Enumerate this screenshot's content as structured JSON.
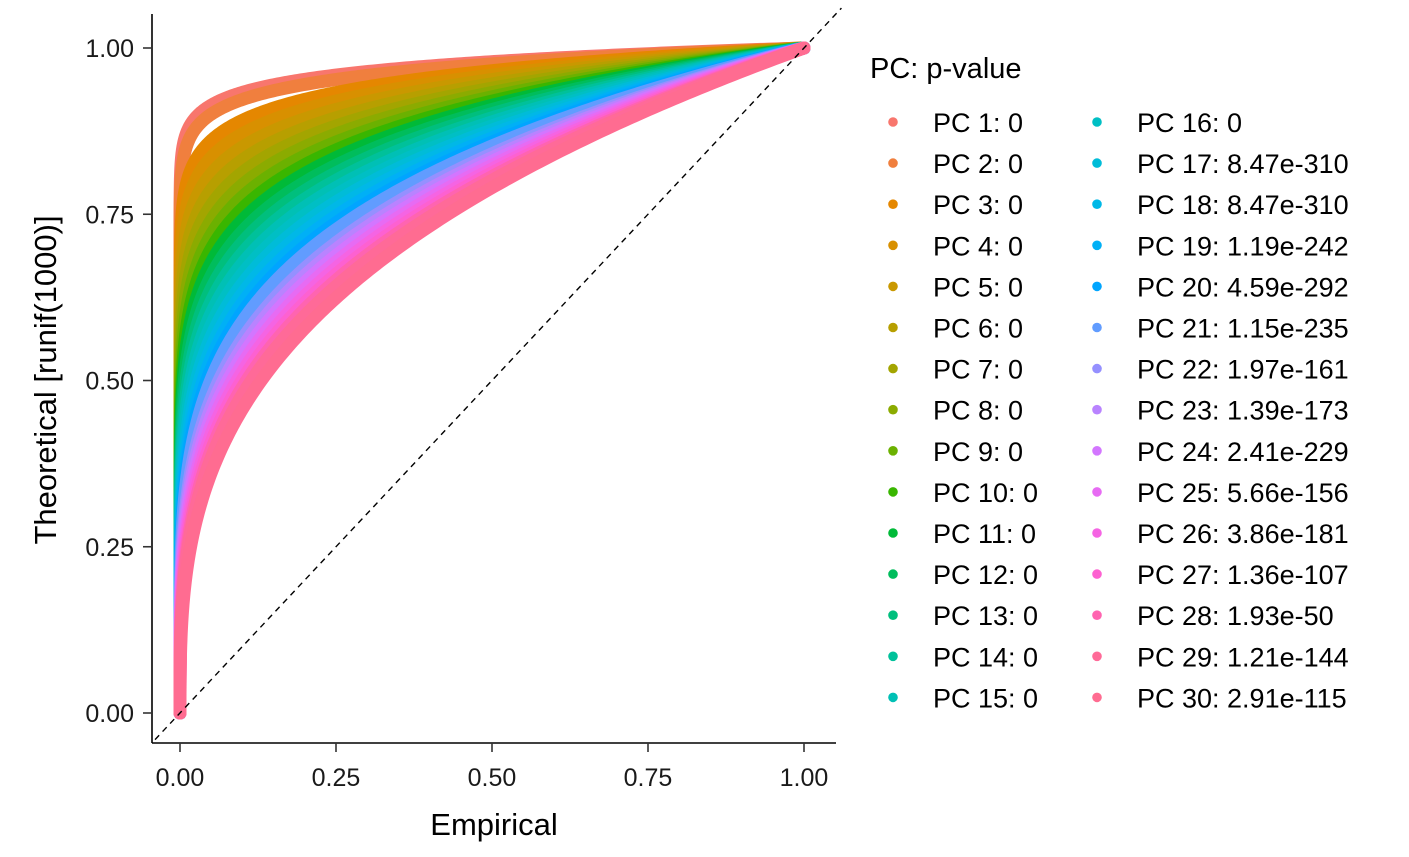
{
  "chart_data": {
    "type": "line",
    "xlabel": "Empirical",
    "ylabel": "Theoretical [runif(1000)]",
    "xlim": [
      -0.05,
      1.05
    ],
    "ylim": [
      -0.05,
      1.05
    ],
    "x_ticks": [
      "0.00",
      "0.25",
      "0.50",
      "0.75",
      "1.00"
    ],
    "y_ticks": [
      "0.00",
      "0.25",
      "0.50",
      "0.75",
      "1.00"
    ],
    "reference_line": "y = x (dashed)",
    "grid": false,
    "legend": {
      "title": "PC: p-value",
      "placement": "right",
      "columns": 2
    },
    "series": [
      {
        "name": "PC 1: 0",
        "color": "#F8766D",
        "curve_exponent": 0.03
      },
      {
        "name": "PC 2: 0",
        "color": "#F07F3E",
        "curve_exponent": 0.035
      },
      {
        "name": "PC 3: 0",
        "color": "#E58700",
        "curve_exponent": 0.05
      },
      {
        "name": "PC 4: 0",
        "color": "#D89000",
        "curve_exponent": 0.06
      },
      {
        "name": "PC 5: 0",
        "color": "#C99800",
        "curve_exponent": 0.07
      },
      {
        "name": "PC 6: 0",
        "color": "#B79F00",
        "curve_exponent": 0.08
      },
      {
        "name": "PC 7: 0",
        "color": "#A3A500",
        "curve_exponent": 0.09
      },
      {
        "name": "PC 8: 0",
        "color": "#8BAB00",
        "curve_exponent": 0.1
      },
      {
        "name": "PC 9: 0",
        "color": "#6BB100",
        "curve_exponent": 0.11
      },
      {
        "name": "PC 10: 0",
        "color": "#39B600",
        "curve_exponent": 0.12
      },
      {
        "name": "PC 11: 0",
        "color": "#00BA38",
        "curve_exponent": 0.13
      },
      {
        "name": "PC 12: 0",
        "color": "#00BD5C",
        "curve_exponent": 0.14
      },
      {
        "name": "PC 13: 0",
        "color": "#00BF7D",
        "curve_exponent": 0.15
      },
      {
        "name": "PC 14: 0",
        "color": "#00C19A",
        "curve_exponent": 0.16
      },
      {
        "name": "PC 15: 0",
        "color": "#00C0B5",
        "curve_exponent": 0.17
      },
      {
        "name": "PC 16: 0",
        "color": "#00BFC4",
        "curve_exponent": 0.18
      },
      {
        "name": "PC 17: 8.47e-310",
        "color": "#00BCD8",
        "curve_exponent": 0.19
      },
      {
        "name": "PC 18: 8.47e-310",
        "color": "#00B8E7",
        "curve_exponent": 0.2
      },
      {
        "name": "PC 19: 1.19e-242",
        "color": "#00B0F6",
        "curve_exponent": 0.21
      },
      {
        "name": "PC 20: 4.59e-292",
        "color": "#00A5FF",
        "curve_exponent": 0.22
      },
      {
        "name": "PC 21: 1.15e-235",
        "color": "#619CFF",
        "curve_exponent": 0.23
      },
      {
        "name": "PC 22: 1.97e-161",
        "color": "#9590FF",
        "curve_exponent": 0.25
      },
      {
        "name": "PC 23: 1.39e-173",
        "color": "#B983FF",
        "curve_exponent": 0.26
      },
      {
        "name": "PC 24: 2.41e-229",
        "color": "#D376FF",
        "curve_exponent": 0.27
      },
      {
        "name": "PC 25: 5.66e-156",
        "color": "#E76BF3",
        "curve_exponent": 0.28
      },
      {
        "name": "PC 26: 3.86e-181",
        "color": "#F564E3",
        "curve_exponent": 0.29
      },
      {
        "name": "PC 27: 1.36e-107",
        "color": "#FD61D1",
        "curve_exponent": 0.3
      },
      {
        "name": "PC 28: 1.93e-50",
        "color": "#FF64B0",
        "curve_exponent": 0.31
      },
      {
        "name": "PC 29: 1.21e-144",
        "color": "#FF6A98",
        "curve_exponent": 0.32
      },
      {
        "name": "PC 30: 2.91e-115",
        "color": "#FF6C91",
        "curve_exponent": 0.34
      }
    ]
  }
}
